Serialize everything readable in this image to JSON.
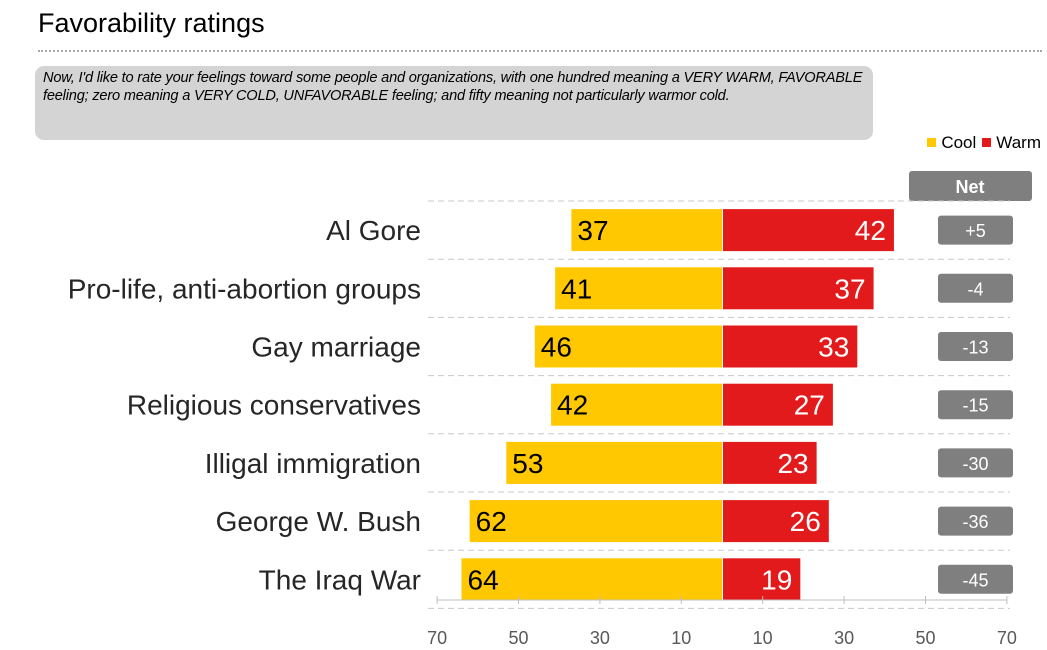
{
  "title": "Favorability ratings",
  "question": "Now, I'd like to rate your feelings toward some people and organizations, with one hundred meaning a VERY WARM, FAVORABLE feeling; zero meaning a VERY COLD, UNFAVORABLE feeling; and fifty meaning not particularly warmor cold.",
  "legend": {
    "cool_label": "Cool",
    "warm_label": "Warm",
    "cool_color": "#ffc800",
    "warm_color": "#e31a1c"
  },
  "net_header": "Net",
  "colors": {
    "net_badge": "#7f7f7f",
    "axis_text": "#595959"
  },
  "chart_data": {
    "type": "bar",
    "orientation": "horizontal-diverging",
    "categories": [
      "Al Gore",
      "Pro-life, anti-abortion groups",
      "Gay marriage",
      "Religious conservatives",
      "Illigal immigration",
      "George W. Bush",
      "The Iraq War"
    ],
    "series": [
      {
        "name": "Cool",
        "values": [
          37,
          41,
          46,
          42,
          53,
          62,
          64
        ]
      },
      {
        "name": "Warm",
        "values": [
          42,
          37,
          33,
          27,
          23,
          26,
          19
        ]
      }
    ],
    "net": [
      "+5",
      "-4",
      "-13",
      "-15",
      "-30",
      "-36",
      "-45"
    ],
    "x_ticks": [
      "70",
      "50",
      "30",
      "10",
      "10",
      "30",
      "50",
      "70"
    ],
    "grid": "dashed horizontal separators",
    "legend_position": "top-right"
  }
}
